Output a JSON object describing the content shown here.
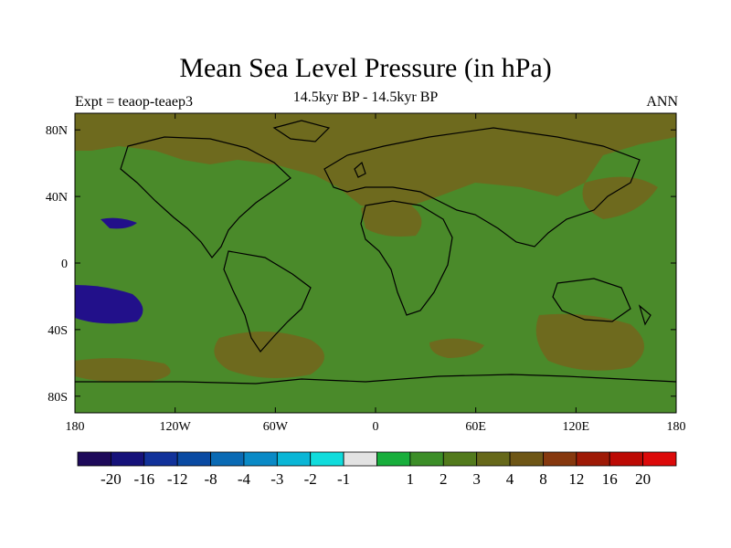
{
  "title": "Mean Sea Level Pressure (in hPa)",
  "subtitle": "14.5kyr BP - 14.5kyr BP",
  "experiment_label": "Expt = teaop-teaep3",
  "season_label": "ANN",
  "map": {
    "projection": "cylindrical-equidistant",
    "lon_range": [
      -180,
      180
    ],
    "lat_range": [
      -90,
      90
    ],
    "fill_color": "#4a8a2a",
    "positive_anomaly_color": "#6e6a1e",
    "negative_anomaly_color": "#22108a",
    "coast_color": "#000000"
  },
  "x_ticks": [
    {
      "lon": -180,
      "label": "180"
    },
    {
      "lon": -120,
      "label": "120W"
    },
    {
      "lon": -60,
      "label": "60W"
    },
    {
      "lon": 0,
      "label": "0"
    },
    {
      "lon": 60,
      "label": "60E"
    },
    {
      "lon": 120,
      "label": "120E"
    },
    {
      "lon": 180,
      "label": "180"
    }
  ],
  "y_ticks": [
    {
      "lat": 80,
      "label": "80N"
    },
    {
      "lat": 40,
      "label": "40N"
    },
    {
      "lat": 0,
      "label": "0"
    },
    {
      "lat": -40,
      "label": "40S"
    },
    {
      "lat": -80,
      "label": "80S"
    }
  ],
  "colorbar": {
    "colors": [
      "#1e0a5a",
      "#16127a",
      "#12329a",
      "#0a4aa2",
      "#0a6ab4",
      "#0a8ac6",
      "#0ab6d6",
      "#10dcdc",
      "#e2e2e2",
      "#18ae3c",
      "#3c8e28",
      "#527a1c",
      "#66681a",
      "#6e5616",
      "#86380e",
      "#9e1a06",
      "#bc0a04",
      "#dc0a0a"
    ],
    "labels": [
      "-20",
      "-16",
      "-12",
      "-8",
      "-4",
      "-3",
      "-2",
      "-1",
      "1",
      "2",
      "3",
      "4",
      "8",
      "12",
      "16",
      "20"
    ]
  }
}
